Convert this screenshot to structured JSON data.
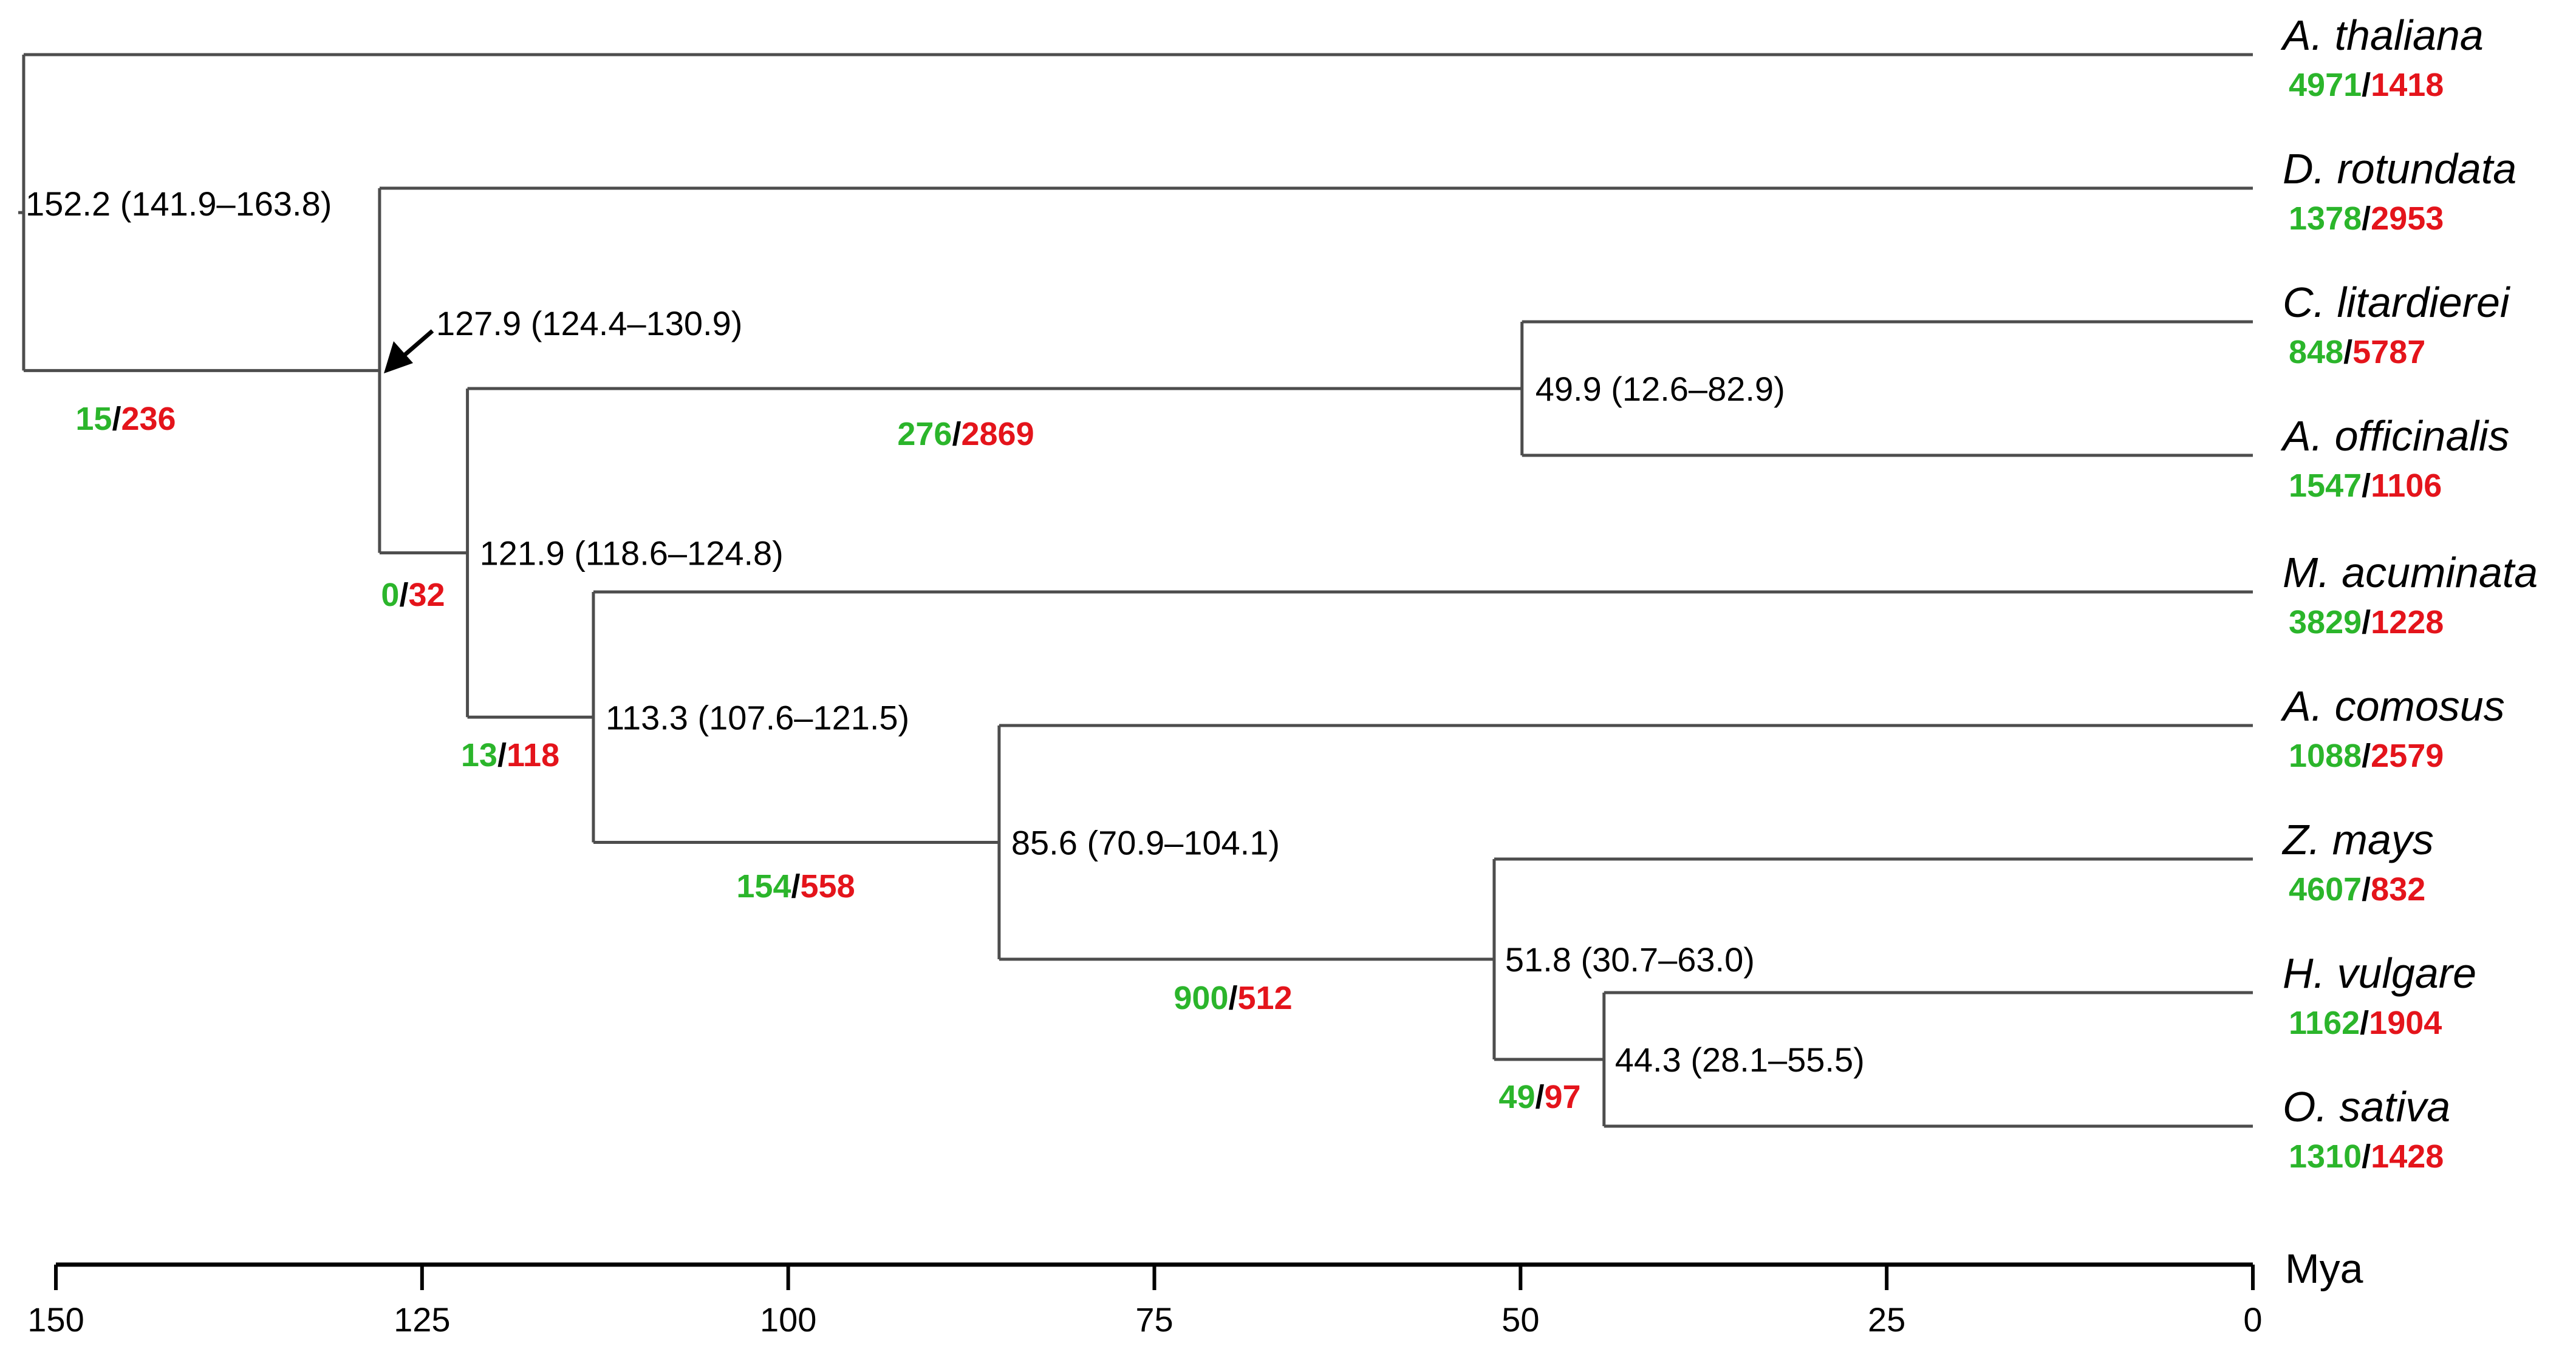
{
  "tree": {
    "taxa": [
      {
        "name": "A. thaliana",
        "gain": "4971",
        "loss": "1418"
      },
      {
        "name": "D. rotundata",
        "gain": "1378",
        "loss": "2953"
      },
      {
        "name": "C. litardierei",
        "gain": "848",
        "loss": "5787"
      },
      {
        "name": "A. officinalis",
        "gain": "1547",
        "loss": "1106"
      },
      {
        "name": "M. acuminata",
        "gain": "3829",
        "loss": "1228"
      },
      {
        "name": "A. comosus",
        "gain": "1088",
        "loss": "2579"
      },
      {
        "name": "Z. mays",
        "gain": "4607",
        "loss": "832"
      },
      {
        "name": "H. vulgare",
        "gain": "1162",
        "loss": "1904"
      },
      {
        "name": "O. sativa",
        "gain": "1310",
        "loss": "1428"
      }
    ],
    "nodes": [
      {
        "id": "root",
        "age": 152.2,
        "label": "152.2 (141.9–163.8)",
        "gain": "15",
        "loss": "236"
      },
      {
        "id": "monocots",
        "age": 127.9,
        "label": "127.9 (124.4–130.9)",
        "gain": "0",
        "loss": "32"
      },
      {
        "id": "n121",
        "age": 121.9,
        "label": "121.9 (118.6–124.8)",
        "gain": "13",
        "loss": "118"
      },
      {
        "id": "asparagales",
        "age": 49.9,
        "label": "49.9 (12.6–82.9)",
        "gain": "276",
        "loss": "2869"
      },
      {
        "id": "n113",
        "age": 113.3,
        "label": "113.3 (107.6–121.5)",
        "gain": "154",
        "loss": "558"
      },
      {
        "id": "poales",
        "age": 85.6,
        "label": "85.6 (70.9–104.1)",
        "gain": "900",
        "loss": "512"
      },
      {
        "id": "grasses",
        "age": 51.8,
        "label": "51.8 (30.7–63.0)",
        "gain": "49",
        "loss": "97"
      },
      {
        "id": "bep",
        "age": 44.3,
        "label": "44.3 (28.1–55.5)"
      }
    ]
  },
  "axis": {
    "unit": "Mya",
    "min": 0,
    "max": 150,
    "ticks": [
      {
        "value": 150,
        "label": "150"
      },
      {
        "value": 125,
        "label": "125"
      },
      {
        "value": 100,
        "label": "100"
      },
      {
        "value": 75,
        "label": "75"
      },
      {
        "value": 50,
        "label": "50"
      },
      {
        "value": 25,
        "label": "25"
      },
      {
        "value": 0,
        "label": "0"
      }
    ]
  },
  "colors": {
    "gain": "#2bb52b",
    "loss": "#e4141b",
    "branch": "#4d4d4d",
    "arrow": "#000000"
  }
}
